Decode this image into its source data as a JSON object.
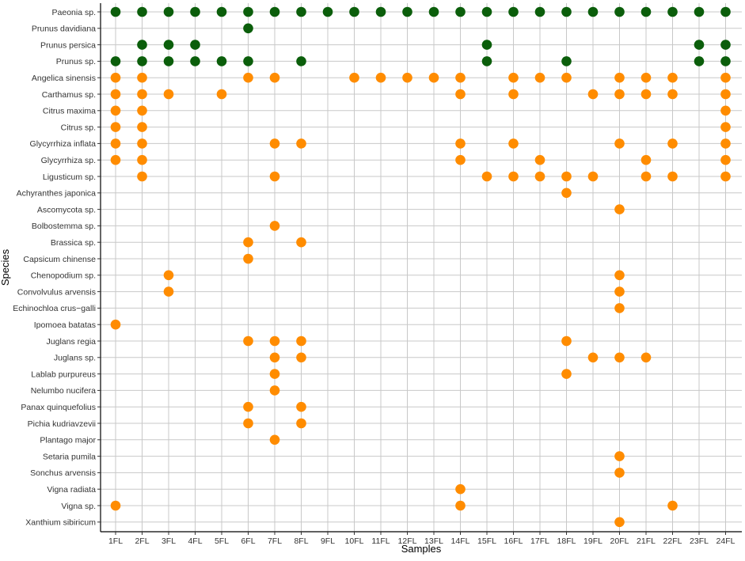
{
  "chart_data": {
    "type": "scatter",
    "xlabel": "Samples",
    "ylabel": "Species",
    "grid": true,
    "legend": "none",
    "colors": {
      "dark_group": "#0b5e0b",
      "orange_group": "#ff8c00"
    },
    "samples": [
      "1FL",
      "2FL",
      "3FL",
      "4FL",
      "5FL",
      "6FL",
      "7FL",
      "8FL",
      "9FL",
      "10FL",
      "11FL",
      "12FL",
      "13FL",
      "14FL",
      "15FL",
      "16FL",
      "17FL",
      "18FL",
      "19FL",
      "20FL",
      "21FL",
      "22FL",
      "23FL",
      "24FL"
    ],
    "species": [
      {
        "name": "Paeonia sp.",
        "group": "dark",
        "present": [
          "1FL",
          "2FL",
          "3FL",
          "4FL",
          "5FL",
          "6FL",
          "7FL",
          "8FL",
          "9FL",
          "10FL",
          "11FL",
          "12FL",
          "13FL",
          "14FL",
          "15FL",
          "16FL",
          "17FL",
          "18FL",
          "19FL",
          "20FL",
          "21FL",
          "22FL",
          "23FL",
          "24FL"
        ]
      },
      {
        "name": "Prunus davidiana",
        "group": "dark",
        "present": [
          "6FL"
        ]
      },
      {
        "name": "Prunus persica",
        "group": "dark",
        "present": [
          "2FL",
          "3FL",
          "4FL",
          "15FL",
          "23FL",
          "24FL"
        ]
      },
      {
        "name": "Prunus sp.",
        "group": "dark",
        "present": [
          "1FL",
          "2FL",
          "3FL",
          "4FL",
          "5FL",
          "6FL",
          "8FL",
          "15FL",
          "18FL",
          "23FL",
          "24FL"
        ]
      },
      {
        "name": "Angelica sinensis",
        "group": "orange",
        "present": [
          "1FL",
          "2FL",
          "6FL",
          "7FL",
          "10FL",
          "11FL",
          "12FL",
          "13FL",
          "14FL",
          "16FL",
          "17FL",
          "18FL",
          "20FL",
          "21FL",
          "22FL",
          "24FL"
        ]
      },
      {
        "name": "Carthamus sp.",
        "group": "orange",
        "present": [
          "1FL",
          "2FL",
          "3FL",
          "5FL",
          "14FL",
          "16FL",
          "19FL",
          "20FL",
          "21FL",
          "22FL",
          "24FL"
        ]
      },
      {
        "name": "Citrus maxima",
        "group": "orange",
        "present": [
          "1FL",
          "2FL",
          "24FL"
        ]
      },
      {
        "name": "Citrus sp.",
        "group": "orange",
        "present": [
          "1FL",
          "2FL",
          "24FL"
        ]
      },
      {
        "name": "Glycyrrhiza inflata",
        "group": "orange",
        "present": [
          "1FL",
          "2FL",
          "7FL",
          "8FL",
          "14FL",
          "16FL",
          "20FL",
          "22FL",
          "24FL"
        ]
      },
      {
        "name": "Glycyrrhiza sp.",
        "group": "orange",
        "present": [
          "1FL",
          "2FL",
          "14FL",
          "17FL",
          "21FL",
          "24FL"
        ]
      },
      {
        "name": "Ligusticum sp.",
        "group": "orange",
        "present": [
          "2FL",
          "7FL",
          "15FL",
          "16FL",
          "17FL",
          "18FL",
          "19FL",
          "21FL",
          "22FL",
          "24FL"
        ]
      },
      {
        "name": "Achyranthes japonica",
        "group": "orange",
        "present": [
          "18FL"
        ]
      },
      {
        "name": "Ascomycota sp.",
        "group": "orange",
        "present": [
          "20FL"
        ]
      },
      {
        "name": "Bolbostemma sp.",
        "group": "orange",
        "present": [
          "7FL"
        ]
      },
      {
        "name": "Brassica sp.",
        "group": "orange",
        "present": [
          "6FL",
          "8FL"
        ]
      },
      {
        "name": "Capsicum chinense",
        "group": "orange",
        "present": [
          "6FL"
        ]
      },
      {
        "name": "Chenopodium sp.",
        "group": "orange",
        "present": [
          "3FL",
          "20FL"
        ]
      },
      {
        "name": "Convolvulus arvensis",
        "group": "orange",
        "present": [
          "3FL",
          "20FL"
        ]
      },
      {
        "name": "Echinochloa crus−galli",
        "group": "orange",
        "present": [
          "20FL"
        ]
      },
      {
        "name": "Ipomoea batatas",
        "group": "orange",
        "present": [
          "1FL"
        ]
      },
      {
        "name": "Juglans regia",
        "group": "orange",
        "present": [
          "6FL",
          "7FL",
          "8FL",
          "18FL"
        ]
      },
      {
        "name": "Juglans sp.",
        "group": "orange",
        "present": [
          "7FL",
          "8FL",
          "19FL",
          "20FL",
          "21FL"
        ]
      },
      {
        "name": "Lablab purpureus",
        "group": "orange",
        "present": [
          "7FL",
          "18FL"
        ]
      },
      {
        "name": "Nelumbo nucifera",
        "group": "orange",
        "present": [
          "7FL"
        ]
      },
      {
        "name": "Panax quinquefolius",
        "group": "orange",
        "present": [
          "6FL",
          "8FL"
        ]
      },
      {
        "name": "Pichia kudriavzevii",
        "group": "orange",
        "present": [
          "6FL",
          "8FL"
        ]
      },
      {
        "name": "Plantago major",
        "group": "orange",
        "present": [
          "7FL"
        ]
      },
      {
        "name": "Setaria pumila",
        "group": "orange",
        "present": [
          "20FL"
        ]
      },
      {
        "name": "Sonchus arvensis",
        "group": "orange",
        "present": [
          "20FL"
        ]
      },
      {
        "name": "Vigna radiata",
        "group": "orange",
        "present": [
          "14FL"
        ]
      },
      {
        "name": "Vigna sp.",
        "group": "orange",
        "present": [
          "1FL",
          "14FL",
          "22FL"
        ]
      },
      {
        "name": "Xanthium sibiricum",
        "group": "orange",
        "present": [
          "20FL"
        ]
      }
    ]
  }
}
